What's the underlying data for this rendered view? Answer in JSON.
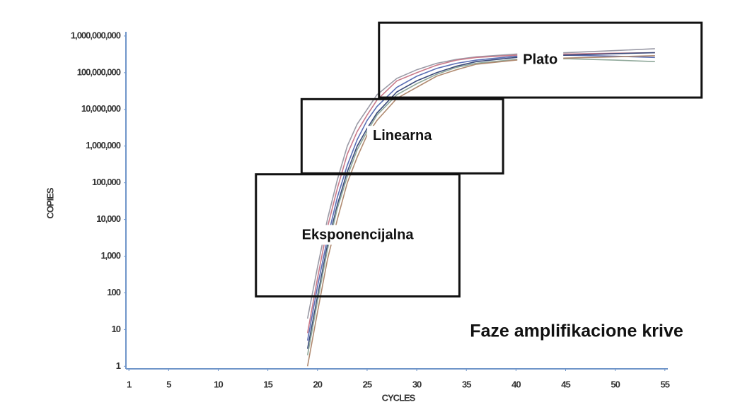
{
  "chart_data": {
    "type": "line",
    "title": "Faze amplifikacione krive",
    "x_label": "CYCLES",
    "y_label": "COPIES",
    "log_y": true,
    "xlim": [
      0.7,
      55.3
    ],
    "xticks": [
      1,
      5,
      10,
      15,
      20,
      25,
      30,
      35,
      40,
      45,
      50,
      55
    ],
    "ylim": [
      0.85,
      1300000000
    ],
    "yticks": [
      1,
      10,
      100,
      {
        "value": 1000,
        "label": "1,000"
      },
      {
        "value": 10000,
        "label": "10,000"
      },
      {
        "value": 100000,
        "label": "100,000"
      },
      {
        "value": 1000000,
        "label": "1,000,000"
      },
      {
        "value": 10000000,
        "label": "10,000,000"
      },
      {
        "value": 100000000,
        "label": "100,000,000"
      },
      {
        "value": 1000000000,
        "label": "1,000,000,000"
      }
    ],
    "x": [
      19,
      20,
      21,
      22,
      23,
      24,
      25,
      26,
      28,
      30,
      32,
      34,
      36,
      40,
      45,
      50,
      54
    ],
    "series": [
      {
        "color": "#9a9aa6",
        "values": [
          20,
          500,
          10000,
          120000,
          1000000,
          4000000,
          10000000,
          25000000,
          70000000,
          120000000,
          180000000,
          230000000,
          270000000,
          320000000,
          350000000,
          400000000,
          450000000
        ]
      },
      {
        "color": "#5b6fb5",
        "values": [
          5,
          150,
          3000,
          40000,
          300000,
          1500000,
          5000000,
          12000000,
          40000000,
          80000000,
          130000000,
          180000000,
          220000000,
          280000000,
          300000000,
          280000000,
          260000000
        ]
      },
      {
        "color": "#c97a8a",
        "values": [
          8,
          250,
          6000,
          70000,
          600000,
          2500000,
          7000000,
          18000000,
          60000000,
          100000000,
          160000000,
          220000000,
          260000000,
          300000000,
          320000000,
          340000000,
          350000000
        ]
      },
      {
        "color": "#3a4a7a",
        "values": [
          3,
          80,
          2000,
          25000,
          200000,
          1000000,
          3000000,
          8000000,
          30000000,
          60000000,
          100000000,
          150000000,
          200000000,
          260000000,
          300000000,
          330000000,
          350000000
        ]
      },
      {
        "color": "#8fa89a",
        "values": [
          2,
          60,
          1500,
          20000,
          150000,
          800000,
          2500000,
          7000000,
          25000000,
          50000000,
          90000000,
          140000000,
          180000000,
          230000000,
          240000000,
          220000000,
          200000000
        ]
      },
      {
        "color": "#b08a70",
        "values": [
          1,
          30,
          800,
          10000,
          100000,
          500000,
          2000000,
          5000000,
          20000000,
          40000000,
          80000000,
          120000000,
          170000000,
          220000000,
          250000000,
          270000000,
          290000000
        ]
      }
    ],
    "annotations": [
      {
        "label": "Plato",
        "x": [
          26.2,
          58.7
        ],
        "y": [
          21000000,
          2300000000
        ]
      },
      {
        "label": "Linearna",
        "x": [
          18.4,
          38.7
        ],
        "y": [
          180000,
          19000000
        ]
      },
      {
        "label": "Eksponencijalna",
        "x": [
          13.8,
          34.3
        ],
        "y": [
          80,
          170000
        ]
      }
    ]
  }
}
